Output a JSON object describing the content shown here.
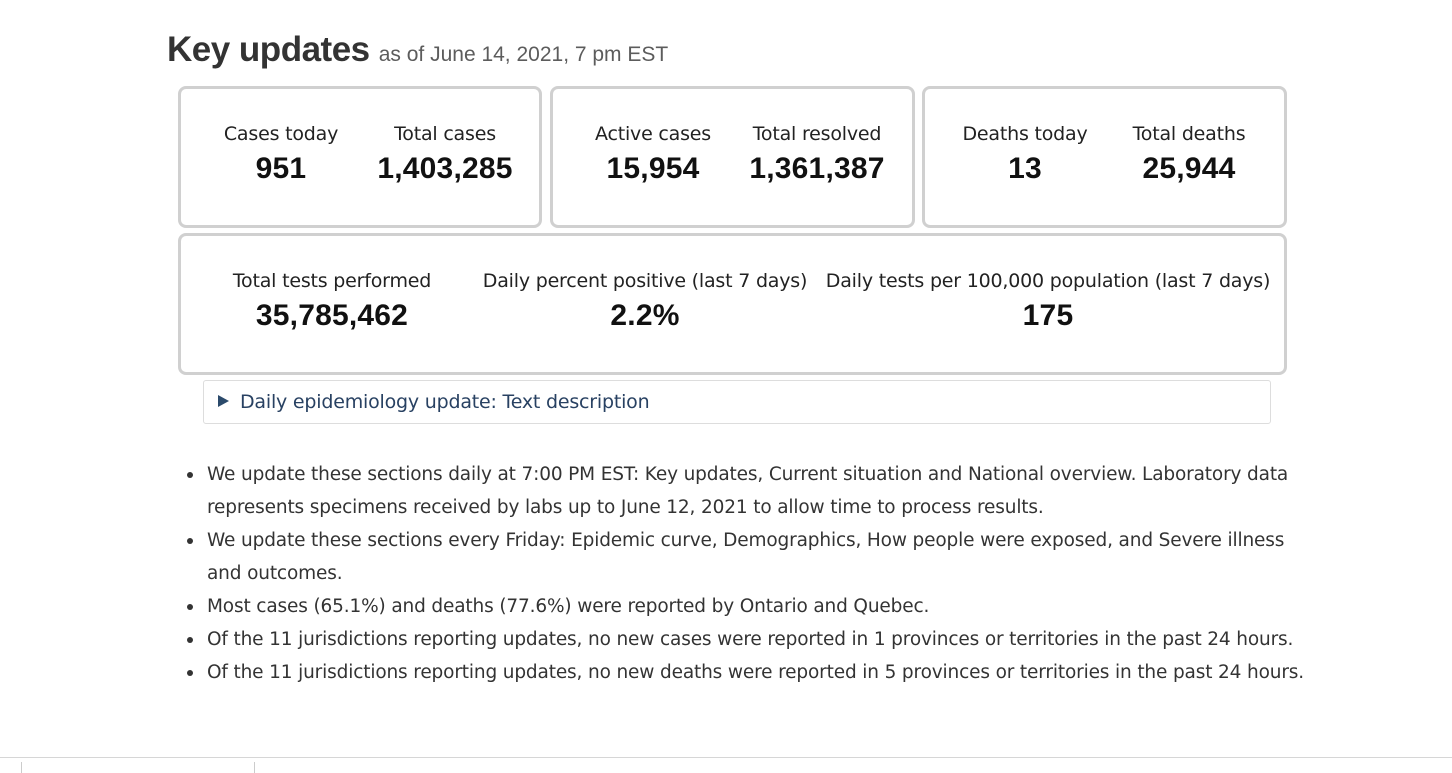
{
  "heading": {
    "title": "Key updates",
    "subtitle": "as of June 14, 2021, 7 pm EST"
  },
  "cases_card": {
    "cases_today_label": "Cases today",
    "cases_today_value": "951",
    "total_cases_label": "Total cases",
    "total_cases_value": "1,403,285"
  },
  "active_card": {
    "active_cases_label": "Active cases",
    "active_cases_value": "15,954",
    "total_resolved_label": "Total resolved",
    "total_resolved_value": "1,361,387"
  },
  "deaths_card": {
    "deaths_today_label": "Deaths today",
    "deaths_today_value": "13",
    "total_deaths_label": "Total deaths",
    "total_deaths_value": "25,944"
  },
  "tests_card": {
    "total_tests_label": "Total tests performed",
    "total_tests_value": "35,785,462",
    "percent_positive_label": "Daily percent positive (last 7 days)",
    "percent_positive_value": "2.2%",
    "tests_per_100k_label": "Daily tests per 100,000 population (last 7 days)",
    "tests_per_100k_value": "175"
  },
  "details": {
    "summary": "Daily epidemiology update: Text description"
  },
  "notes": [
    "We update these sections daily at 7:00 PM EST: Key updates, Current situation and National overview. Laboratory data represents specimens received by labs up to June 12, 2021 to allow time to process results.",
    "We update these sections every Friday: Epidemic curve, Demographics, How people were exposed, and Severe illness and outcomes.",
    "Most cases (65.1%) and deaths (77.6%) were reported by Ontario and Quebec.",
    "Of the 11 jurisdictions reporting updates, no new cases were reported in 1 provinces or territories in the past 24 hours.",
    "Of the 11 jurisdictions reporting updates, no new deaths were reported in 5 provinces or territories in the past 24 hours."
  ]
}
